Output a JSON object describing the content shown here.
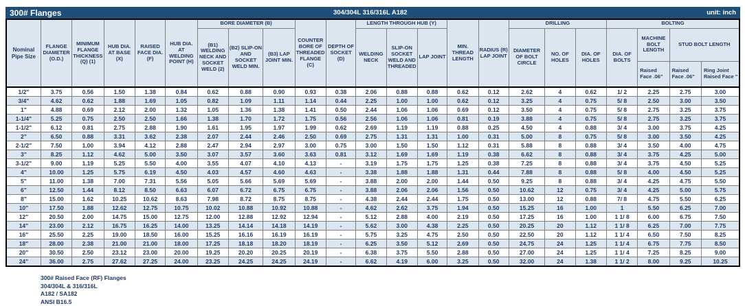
{
  "title_bar": {
    "title": "300# Flanges",
    "material": "304/304L 316/316L A182",
    "unit": "unit: inch"
  },
  "colors": {
    "title_bar_bg": "#1F4E79",
    "header_bg": "#DCE6F1",
    "row_alt_bg": "#DCE6F1",
    "text": "#1F3864",
    "border": "#808080"
  },
  "table": {
    "groups": {
      "bore": "BORE DIAMETER (B)",
      "length_hub": "LENGTH THROUGH HUB (Y)",
      "drilling": "DRILLING",
      "bolting": "BOLTING"
    },
    "columns": {
      "nominal": "Nominal Pipe Size",
      "flange_diameter": "FLANGE DIAMETER (O.D.)",
      "min_thickness": "MINIMUM FLANGE THICKNESS (Q) (1)",
      "hub_dia_base": "HUB DIA. AT BASE (X)",
      "raised_face_dia": "RAISED FACE DIA. (F)",
      "hub_dia_welding": "HUB DIA. AT WELDING POINT (H)",
      "b1": "(B1) WELDING NECK AND SOCKET WELD (2)",
      "b2": "(B2) SLIP-ON AND SOCKET WELD MIN.",
      "b3": "(B3) LAP JOINT MIN.",
      "counter_bore": "COUNTER BORE OF THREADED FLANGE (C)",
      "socket_depth": "DEPTH OF SOCKET (D)",
      "welding_neck": "WELDING NECK",
      "slip_on_threaded": "SLIP-ON SOCKET WELD AND THREADED",
      "lap_joint": "LAP JOINT",
      "min_thread": "MIN. THREAD LENGTH",
      "radius_lap": "RADIUS (R) LAP JOINT",
      "bolt_circle": "DIAMETER OF BOLT CIRCLE",
      "no_holes": "NO. OF HOLES",
      "dia_holes": "DIA. OF HOLES",
      "dia_bolts": "DIA. OF BOLTS",
      "machine_bolt": "MACHINE BOLT LENGTH",
      "stud_bolt": "STUD BOLT LENGTH"
    },
    "sub_columns": {
      "machine_raised": "Raised Face .06\"",
      "stud_raised": "Raised Face .06\"",
      "stud_ring": "Ring Joint Raised Face \""
    },
    "rows": [
      [
        "1/2\"",
        "3.75",
        "0.56",
        "1.50",
        "1.38",
        "0.84",
        "0.62",
        "0.88",
        "0.90",
        "0.93",
        "0.38",
        "2.06",
        "0.88",
        "0.88",
        "0.62",
        "0.12",
        "2.62",
        "4",
        "0.62",
        "1/ 2",
        "2.25",
        "2.75",
        "3.00"
      ],
      [
        "3/4\"",
        "4.62",
        "0.62",
        "1.88",
        "1.69",
        "1.05",
        "0.82",
        "1.09",
        "1.11",
        "1.14",
        "0.44",
        "2.25",
        "1.00",
        "1.00",
        "0.62",
        "0.12",
        "3.25",
        "4",
        "0.75",
        "5/ 8",
        "2.50",
        "3.00",
        "3.50"
      ],
      [
        "1\"",
        "4.88",
        "0.69",
        "2.12",
        "2.00",
        "1.32",
        "1.05",
        "1.36",
        "1.38",
        "1.41",
        "0.50",
        "2.44",
        "1.06",
        "1.06",
        "0.69",
        "0.12",
        "3.50",
        "4",
        "0.75",
        "5/ 8",
        "2.75",
        "3.25",
        "3.75"
      ],
      [
        "1-1/4\"",
        "5.25",
        "0.75",
        "2.50",
        "2.50",
        "1.66",
        "1.38",
        "1.70",
        "1.72",
        "1.75",
        "0.56",
        "2.56",
        "1.06",
        "1.06",
        "0.81",
        "0.19",
        "3.88",
        "4",
        "0.75",
        "5/ 8",
        "2.75",
        "3.25",
        "3.75"
      ],
      [
        "1-1/2\"",
        "6.12",
        "0.81",
        "2.75",
        "2.88",
        "1.90",
        "1.61",
        "1.95",
        "1.97",
        "1.99",
        "0.62",
        "2.69",
        "1.19",
        "1.19",
        "0.88",
        "0.25",
        "4.50",
        "4",
        "0.88",
        "3/ 4",
        "3.00",
        "3.75",
        "4.25"
      ],
      [
        "2\"",
        "6.50",
        "0.88",
        "3.31",
        "3.62",
        "2.38",
        "2.07",
        "2.44",
        "2.46",
        "2.50",
        "0.69",
        "2.75",
        "1.31",
        "1.31",
        "1.00",
        "0.31",
        "5.00",
        "8",
        "0.75",
        "5/ 8",
        "3.00",
        "3.50",
        "4.25"
      ],
      [
        "2-1/2\"",
        "7.50",
        "1.00",
        "3.94",
        "4.12",
        "2.88",
        "2.47",
        "2.94",
        "2.97",
        "3.00",
        "0.75",
        "3.00",
        "1.50",
        "1.50",
        "1.12",
        "0.31",
        "5.88",
        "8",
        "0.88",
        "3/ 4",
        "3.50",
        "4.00",
        "4.75"
      ],
      [
        "3\"",
        "8.25",
        "1.12",
        "4.62",
        "5.00",
        "3.50",
        "3.07",
        "3.57",
        "3.60",
        "3.63",
        "0.81",
        "3.12",
        "1.69",
        "1.69",
        "1.19",
        "0.38",
        "6.62",
        "8",
        "0.88",
        "3/ 4",
        "3.75",
        "4.25",
        "5.00"
      ],
      [
        "3-1/2\"",
        "9.00",
        "1.19",
        "5.25",
        "5.50",
        "4.00",
        "3.55",
        "4.07",
        "4.10",
        "4.13",
        "-",
        "3.19",
        "1.75",
        "1.75",
        "1.25",
        "0.38",
        "7.25",
        "8",
        "0.88",
        "3/ 4",
        "3.75",
        "4.50",
        "5.25"
      ],
      [
        "4\"",
        "10.00",
        "1.25",
        "5.75",
        "6.19",
        "4.50",
        "4.03",
        "4.57",
        "4.60",
        "4.63",
        "-",
        "3.38",
        "1.88",
        "1.88",
        "1.31",
        "0.44",
        "7.88",
        "8",
        "0.88",
        "5/ 8",
        "4.00",
        "4.50",
        "5.25"
      ],
      [
        "5\"",
        "11.00",
        "1.38",
        "7.00",
        "7.31",
        "5.56",
        "5.05",
        "5.66",
        "5.69",
        "5.69",
        "-",
        "3.88",
        "2.00",
        "2.00",
        "1.44",
        "0.50",
        "9.25",
        "8",
        "0.88",
        "3/ 4",
        "4.25",
        "4.75",
        "5.50"
      ],
      [
        "6\"",
        "12.50",
        "1.44",
        "8.12",
        "8.50",
        "6.63",
        "6.07",
        "6.72",
        "6.75",
        "6.75",
        "-",
        "3.88",
        "2.06",
        "2.06",
        "1.56",
        "0.50",
        "10.62",
        "12",
        "0.75",
        "3/ 4",
        "4.25",
        "5.00",
        "5.75"
      ],
      [
        "8\"",
        "15.00",
        "1.62",
        "10.25",
        "10.62",
        "8.63",
        "7.98",
        "8.72",
        "8.75",
        "8.75",
        "-",
        "4.38",
        "2.44",
        "2.44",
        "1.75",
        "0.50",
        "13.00",
        "12",
        "0.88",
        "7/ 8",
        "4.75",
        "5.50",
        "6.25"
      ],
      [
        "10\"",
        "17.50",
        "1.88",
        "12.62",
        "12.75",
        "10.75",
        "10.02",
        "10.88",
        "10.92",
        "10.88",
        "-",
        "4.62",
        "2.62",
        "3.75",
        "1.94",
        "0.50",
        "15.25",
        "16",
        "1.00",
        "1",
        "5.50",
        "6.25",
        "7.00"
      ],
      [
        "12\"",
        "20.50",
        "2.00",
        "14.75",
        "15.00",
        "12.75",
        "12.00",
        "12.88",
        "12.92",
        "12.94",
        "-",
        "5.12",
        "2.88",
        "4.00",
        "2.19",
        "0.50",
        "17.25",
        "16",
        "1.00",
        "1 1/ 8",
        "6.00",
        "6.75",
        "7.50"
      ],
      [
        "14\"",
        "23.00",
        "2.12",
        "16.75",
        "16.25",
        "14.00",
        "13.25",
        "14.14",
        "14.18",
        "14.19",
        "-",
        "5.62",
        "3.00",
        "4.38",
        "2.25",
        "0.50",
        "20.25",
        "20",
        "1.12",
        "1 1/ 8",
        "6.25",
        "7.00",
        "7.75"
      ],
      [
        "16\"",
        "25.50",
        "2.25",
        "19.00",
        "18.50",
        "16.00",
        "15.25",
        "16.16",
        "16.19",
        "16.19",
        "-",
        "5.75",
        "3.25",
        "4.75",
        "2.50",
        "0.50",
        "22.50",
        "20",
        "1.12",
        "1 1/ 4",
        "6.50",
        "7.50",
        "8.25"
      ],
      [
        "18\"",
        "28.00",
        "2.38",
        "21.00",
        "21.00",
        "18.00",
        "17.25",
        "18.18",
        "18.20",
        "18.19",
        "-",
        "6.25",
        "3.50",
        "5.12",
        "2.69",
        "0.50",
        "24.75",
        "24",
        "1.25",
        "1 1/ 4",
        "6.75",
        "7.75",
        "8.50"
      ],
      [
        "20\"",
        "30.50",
        "2.50",
        "23.12",
        "23.00",
        "20.00",
        "19.25",
        "20.20",
        "20.25",
        "20.19",
        "-",
        "6.38",
        "3.75",
        "5.50",
        "2.88",
        "0.50",
        "27.00",
        "24",
        "1.25",
        "1 1/ 4",
        "7.25",
        "8.25",
        "9.00"
      ],
      [
        "24\"",
        "36.00",
        "2.75",
        "27.62",
        "27.25",
        "24.00",
        "23.25",
        "24.25",
        "24.25",
        "24.19",
        "-",
        "6.62",
        "4.19",
        "6.00",
        "3.25",
        "0.50",
        "32.00",
        "24",
        "1.38",
        "1 1/ 2",
        "8.00",
        "9.25",
        "10.25"
      ]
    ]
  },
  "notes": [
    "300# Raised Face (RF) Flanges",
    "304/304L & 316/316L",
    "A182 / SA182",
    "ANSI B16.5"
  ]
}
